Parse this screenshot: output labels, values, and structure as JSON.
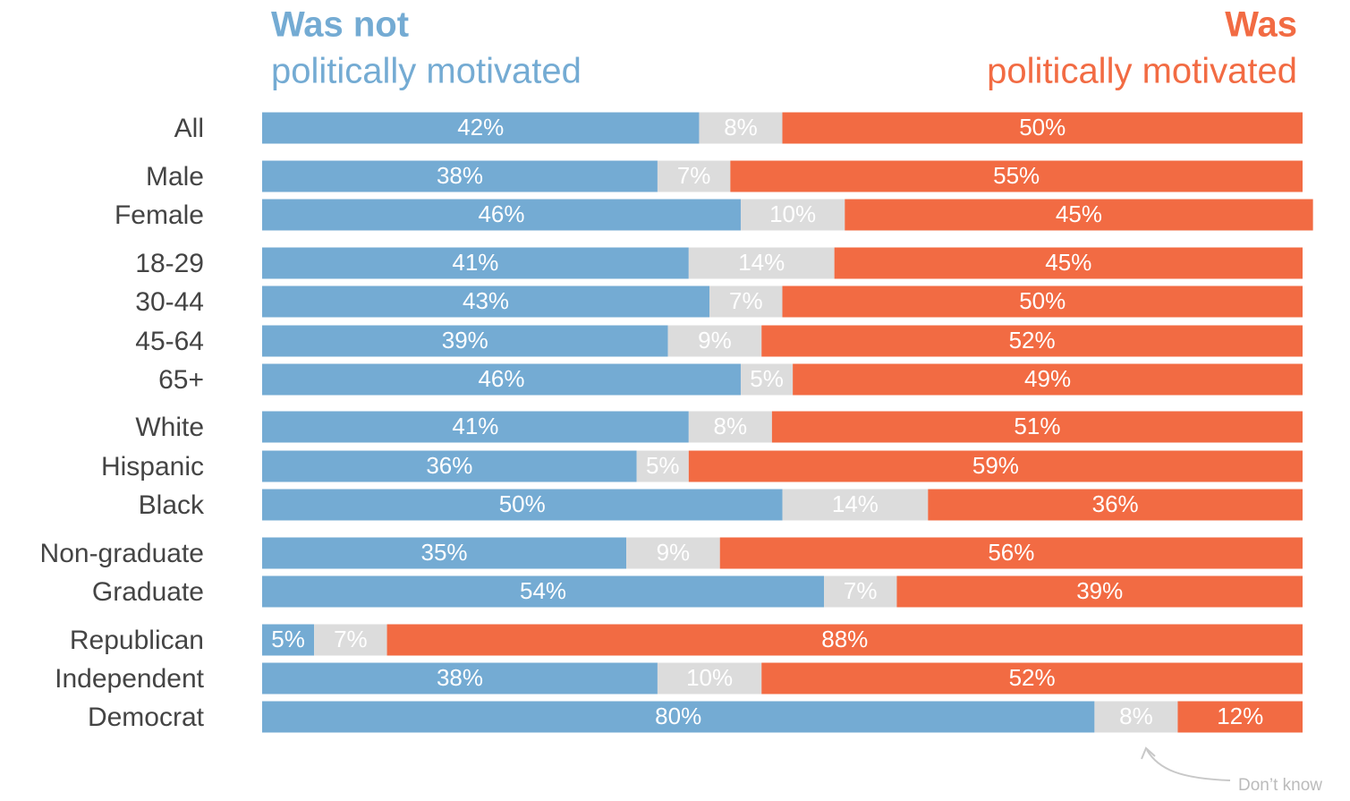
{
  "chart_data": {
    "type": "stacked_bar_horizontal",
    "categories": [
      "All",
      "Male",
      "Female",
      "18-29",
      "30-44",
      "45-64",
      "65+",
      "White",
      "Hispanic",
      "Black",
      "Non-graduate",
      "Graduate",
      "Republican",
      "Independent",
      "Democrat"
    ],
    "xlim": [
      0,
      100
    ],
    "series": [
      {
        "name": "Was not",
        "label": "politically motivated",
        "color": "#74abd3",
        "values": [
          42,
          38,
          46,
          41,
          43,
          39,
          46,
          41,
          36,
          50,
          35,
          54,
          5,
          38,
          80
        ],
        "value_labels": [
          "42%",
          "38%",
          "46%",
          "41%",
          "43%",
          "39%",
          "46%",
          "41%",
          "36%",
          "50%",
          "35%",
          "54%",
          "5%",
          "38%",
          "80%"
        ]
      },
      {
        "name": "Don’t know",
        "color": "#dcdcdc",
        "values": [
          8,
          7,
          10,
          14,
          7,
          9,
          5,
          8,
          5,
          14,
          9,
          7,
          7,
          10,
          8
        ],
        "value_labels": [
          "8%",
          "7%",
          "10%",
          "14%",
          "7%",
          "9%",
          "5%",
          "8%",
          "5%",
          "14%",
          "9%",
          "7%",
          "7%",
          "10%",
          "8%"
        ]
      },
      {
        "name": "Was",
        "label": "politically motivated",
        "color": "#f26b43",
        "values": [
          50,
          55,
          45,
          45,
          50,
          52,
          49,
          51,
          59,
          36,
          56,
          39,
          88,
          52,
          12
        ],
        "value_labels": [
          "50%",
          "55%",
          "45%",
          "45%",
          "50%",
          "52%",
          "49%",
          "51%",
          "59%",
          "36%",
          "56%",
          "39%",
          "88%",
          "52%",
          "12%"
        ]
      }
    ]
  }
}
